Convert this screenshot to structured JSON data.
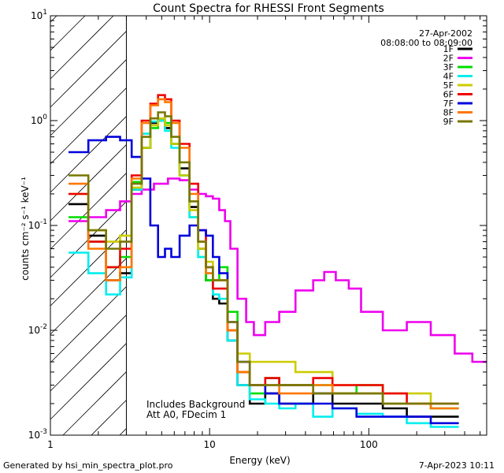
{
  "chart_data": {
    "type": "line",
    "title": "Count Spectra for RHESSI Front Segments",
    "xlabel": "Energy (keV)",
    "ylabel": "counts cm⁻² s⁻¹ keV⁻¹",
    "xscale": "log",
    "yscale": "log",
    "xlim": [
      1,
      550
    ],
    "ylim": [
      0.001,
      10
    ],
    "x_ticks": [
      {
        "value": 1,
        "label": "1"
      },
      {
        "value": 10,
        "label": "10"
      },
      {
        "value": 100,
        "label": "100"
      }
    ],
    "y_ticks": [
      {
        "value": 0.001,
        "base": "10",
        "exp": "-3"
      },
      {
        "value": 0.01,
        "base": "10",
        "exp": "-2"
      },
      {
        "value": 0.1,
        "base": "10",
        "exp": "-1"
      },
      {
        "value": 1,
        "base": "10",
        "exp": "0"
      },
      {
        "value": 10,
        "base": "10",
        "exp": "1"
      }
    ],
    "legend_position": "top-right",
    "date": "27-Apr-2002",
    "time_range": "08:08:00 to 08:09:00",
    "excluded_region": {
      "from": 1,
      "to": 3
    },
    "annotation_lines": [
      "Includes Background",
      "Att A0, FDecim 1"
    ],
    "series": [
      {
        "name": "1F",
        "color": "#000000",
        "x": [
          1.5,
          2,
          2.5,
          3,
          3.5,
          4,
          4.5,
          5,
          5.5,
          6,
          7,
          8,
          9,
          10,
          11,
          12,
          14,
          16,
          20,
          25,
          30,
          40,
          50,
          70,
          100,
          150,
          200,
          300
        ],
        "values": [
          0.16,
          0.08,
          0.03,
          0.035,
          0.22,
          0.55,
          0.95,
          1.0,
          0.85,
          0.6,
          0.35,
          0.15,
          0.06,
          0.03,
          0.02,
          0.018,
          0.008,
          0.003,
          0.002,
          0.0025,
          0.002,
          0.002,
          0.0025,
          0.002,
          0.002,
          0.0018,
          0.0015,
          0.0015
        ]
      },
      {
        "name": "2F",
        "color": "#ee00ee",
        "x": [
          1.5,
          2,
          2.5,
          3,
          3.5,
          4,
          5,
          6,
          7,
          8,
          9,
          10,
          11,
          12,
          13,
          14,
          16,
          18,
          20,
          25,
          30,
          40,
          50,
          55,
          70,
          80,
          100,
          150,
          200,
          300,
          400,
          500
        ],
        "values": [
          0.11,
          0.12,
          0.14,
          0.17,
          0.2,
          0.22,
          0.25,
          0.28,
          0.27,
          0.22,
          0.2,
          0.19,
          0.18,
          0.14,
          0.11,
          0.06,
          0.02,
          0.012,
          0.009,
          0.012,
          0.015,
          0.024,
          0.03,
          0.036,
          0.03,
          0.025,
          0.015,
          0.01,
          0.012,
          0.009,
          0.006,
          0.005
        ]
      },
      {
        "name": "3F",
        "color": "#00dd00",
        "x": [
          1.5,
          2,
          2.5,
          3,
          3.5,
          4,
          4.5,
          5,
          5.5,
          6,
          7,
          8,
          9,
          10,
          11,
          12,
          14,
          16,
          20,
          25,
          30,
          40,
          50,
          70,
          100,
          150,
          200,
          300
        ],
        "values": [
          0.12,
          0.07,
          0.04,
          0.05,
          0.26,
          0.55,
          0.85,
          1.0,
          0.95,
          0.6,
          0.3,
          0.12,
          0.05,
          0.03,
          0.03,
          0.04,
          0.015,
          0.004,
          0.0025,
          0.0035,
          0.003,
          0.003,
          0.003,
          0.0025,
          0.003,
          0.002,
          0.002,
          0.0018
        ]
      },
      {
        "name": "4F",
        "color": "#00eeee",
        "x": [
          1.5,
          2,
          2.5,
          3,
          3.5,
          4,
          4.5,
          5,
          5.5,
          6,
          7,
          8,
          9,
          10,
          11,
          12,
          14,
          16,
          20,
          25,
          30,
          40,
          50,
          70,
          100,
          150,
          200,
          300
        ],
        "values": [
          0.055,
          0.035,
          0.022,
          0.032,
          0.22,
          0.75,
          0.98,
          1.0,
          0.8,
          0.55,
          0.3,
          0.12,
          0.05,
          0.035,
          0.022,
          0.02,
          0.008,
          0.003,
          0.0022,
          0.002,
          0.0018,
          0.002,
          0.0015,
          0.0018,
          0.0016,
          0.0015,
          0.0013,
          0.0012
        ]
      },
      {
        "name": "5F",
        "color": "#cccc00",
        "x": [
          1.5,
          2,
          2.5,
          3,
          3.5,
          4,
          4.5,
          5,
          5.5,
          6,
          7,
          8,
          9,
          10,
          11,
          12,
          14,
          16,
          20,
          25,
          30,
          40,
          50,
          70,
          100,
          150,
          200,
          300
        ],
        "values": [
          0.2,
          0.09,
          0.07,
          0.08,
          0.23,
          0.55,
          0.9,
          1.05,
          0.9,
          0.6,
          0.3,
          0.14,
          0.06,
          0.045,
          0.03,
          0.03,
          0.01,
          0.006,
          0.005,
          0.005,
          0.005,
          0.004,
          0.004,
          0.003,
          0.003,
          0.0025,
          0.0025,
          0.002
        ]
      },
      {
        "name": "6F",
        "color": "#ee0000",
        "x": [
          1.5,
          2,
          2.5,
          3,
          3.5,
          4,
          4.5,
          5,
          5.5,
          6,
          7,
          8,
          9,
          10,
          11,
          12,
          14,
          16,
          20,
          25,
          30,
          40,
          50,
          70,
          100,
          150,
          200,
          300
        ],
        "values": [
          0.2,
          0.07,
          0.04,
          0.06,
          0.3,
          1.0,
          1.45,
          1.75,
          1.6,
          1.0,
          0.6,
          0.25,
          0.09,
          0.04,
          0.025,
          0.025,
          0.01,
          0.004,
          0.003,
          0.0035,
          0.003,
          0.003,
          0.0035,
          0.003,
          0.003,
          0.0025,
          0.002,
          0.002
        ]
      },
      {
        "name": "7F",
        "color": "#0000dd",
        "x": [
          1.5,
          2,
          2.5,
          3,
          3.5,
          4,
          4.5,
          5,
          5.5,
          6,
          7,
          8,
          9,
          10,
          11,
          12,
          14,
          16,
          20,
          25,
          30,
          40,
          50,
          70,
          100,
          150,
          200,
          300
        ],
        "values": [
          0.5,
          0.65,
          0.7,
          0.65,
          0.45,
          0.28,
          0.1,
          0.05,
          0.06,
          0.05,
          0.08,
          0.1,
          0.09,
          0.08,
          0.05,
          0.035,
          0.012,
          0.005,
          0.003,
          0.0025,
          0.002,
          0.002,
          0.002,
          0.0018,
          0.0015,
          0.0015,
          0.0015,
          0.0013
        ]
      },
      {
        "name": "8F",
        "color": "#ff7700",
        "x": [
          1.5,
          2,
          2.5,
          3,
          3.5,
          4,
          4.5,
          5,
          5.5,
          6,
          7,
          8,
          9,
          10,
          11,
          12,
          14,
          16,
          20,
          25,
          30,
          40,
          50,
          70,
          100,
          150,
          200,
          300
        ],
        "values": [
          0.25,
          0.06,
          0.03,
          0.04,
          0.28,
          0.95,
          1.4,
          1.6,
          1.5,
          0.95,
          0.55,
          0.2,
          0.07,
          0.035,
          0.03,
          0.03,
          0.01,
          0.004,
          0.003,
          0.003,
          0.0025,
          0.0025,
          0.003,
          0.0025,
          0.0025,
          0.002,
          0.002,
          0.0018
        ]
      },
      {
        "name": "9F",
        "color": "#777700",
        "x": [
          1.5,
          2,
          2.5,
          3,
          3.5,
          4,
          4.5,
          5,
          5.5,
          6,
          7,
          8,
          9,
          10,
          11,
          12,
          14,
          16,
          20,
          25,
          30,
          40,
          50,
          70,
          100,
          150,
          200,
          300
        ],
        "values": [
          0.3,
          0.09,
          0.06,
          0.07,
          0.25,
          0.7,
          1.05,
          1.2,
          1.1,
          0.7,
          0.4,
          0.17,
          0.07,
          0.04,
          0.03,
          0.03,
          0.012,
          0.005,
          0.003,
          0.003,
          0.003,
          0.003,
          0.0025,
          0.0025,
          0.0025,
          0.002,
          0.002,
          0.002
        ]
      }
    ]
  },
  "footer": {
    "generated_by": "Generated by hsi_min_spectra_plot.pro",
    "date": "7-Apr-2023 10:11"
  }
}
